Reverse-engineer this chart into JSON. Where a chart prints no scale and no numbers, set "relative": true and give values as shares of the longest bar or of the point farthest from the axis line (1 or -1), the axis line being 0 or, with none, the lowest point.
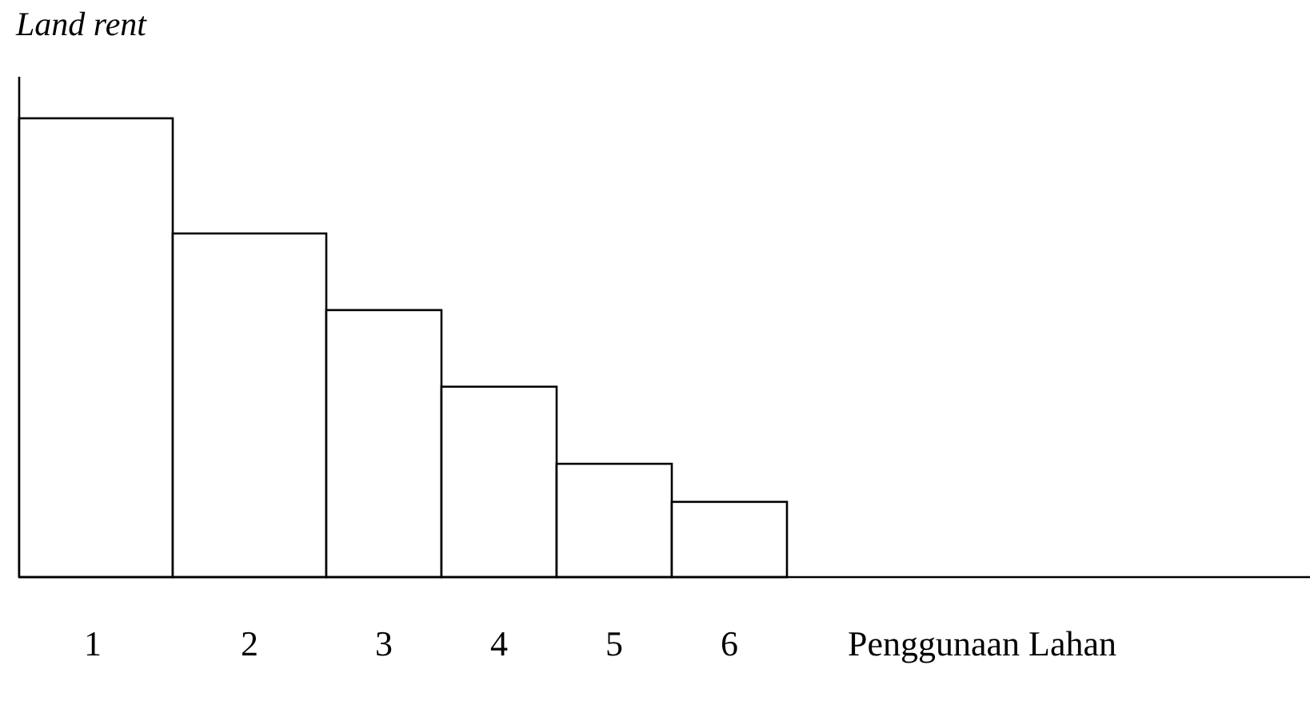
{
  "chart_data": {
    "type": "bar",
    "title": "Land rent",
    "xlabel": "Penggunaan Lahan",
    "categories": [
      "1",
      "2",
      "3",
      "4",
      "5",
      "6"
    ],
    "values": [
      1,
      0.749,
      0.582,
      0.415,
      0.247,
      0.164
    ],
    "relative": true,
    "color": "#ffffff"
  }
}
